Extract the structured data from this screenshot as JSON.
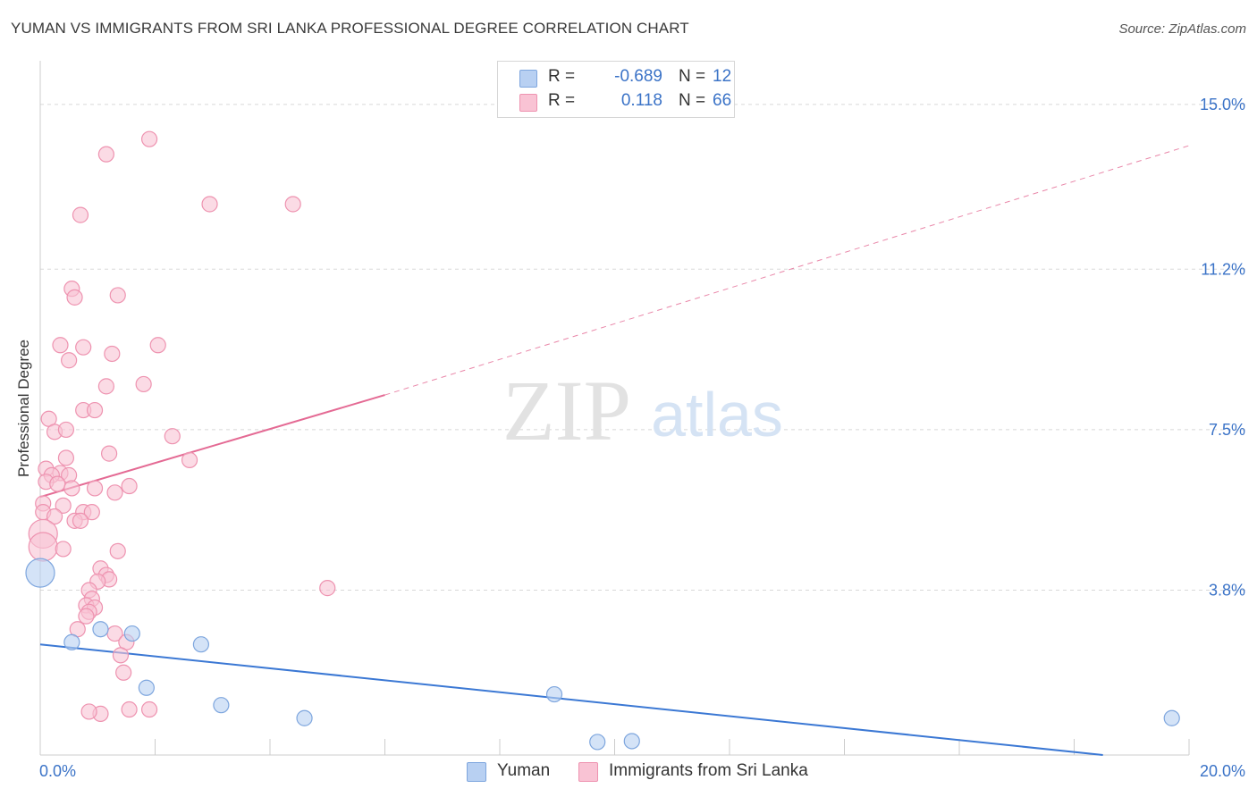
{
  "header": {
    "title": "YUMAN VS IMMIGRANTS FROM SRI LANKA PROFESSIONAL DEGREE CORRELATION CHART",
    "source": "Source: ZipAtlas.com"
  },
  "watermark": {
    "zip": "ZIP",
    "atlas": "atlas"
  },
  "legend": {
    "rows": [
      {
        "r_label": "R =",
        "r_value": "-0.689",
        "n_label": "N =",
        "n_value": "12"
      },
      {
        "r_label": "R =",
        "r_value": "0.118",
        "n_label": "N =",
        "n_value": "66"
      }
    ]
  },
  "bottom_legend": {
    "yuman": "Yuman",
    "srilanka": "Immigrants from Sri Lanka"
  },
  "colors": {
    "yuman_fill": "#b8d0f2",
    "yuman_stroke": "#7ea6de",
    "yuman_line": "#3b78d4",
    "srilanka_fill": "#f9c3d4",
    "srilanka_stroke": "#ee93b0",
    "srilanka_line": "#e46a94",
    "axis_text": "#3b73c7",
    "grid": "#d8d8d8"
  },
  "chart_data": {
    "type": "scatter",
    "title": "YUMAN VS IMMIGRANTS FROM SRI LANKA PROFESSIONAL DEGREE CORRELATION CHART",
    "xlabel": "",
    "ylabel": "Professional Degree",
    "xlim": [
      0,
      20
    ],
    "ylim": [
      0,
      15.8
    ],
    "x_tick_labels": [
      {
        "value": 0,
        "label": "0.0%"
      },
      {
        "value": 20,
        "label": "20.0%"
      }
    ],
    "y_tick_labels": [
      {
        "value": 3.8,
        "label": "3.8%"
      },
      {
        "value": 7.5,
        "label": "7.5%"
      },
      {
        "value": 11.2,
        "label": "11.2%"
      },
      {
        "value": 15.0,
        "label": "15.0%"
      }
    ],
    "series": [
      {
        "name": "Yuman",
        "r": -0.689,
        "n": 12,
        "points": [
          {
            "x": 0.0,
            "y": 4.2,
            "size": "large"
          },
          {
            "x": 0.55,
            "y": 2.6
          },
          {
            "x": 1.05,
            "y": 2.9
          },
          {
            "x": 1.6,
            "y": 2.8
          },
          {
            "x": 1.85,
            "y": 1.55
          },
          {
            "x": 2.8,
            "y": 2.55
          },
          {
            "x": 3.15,
            "y": 1.15
          },
          {
            "x": 4.6,
            "y": 0.85
          },
          {
            "x": 8.95,
            "y": 1.4
          },
          {
            "x": 9.7,
            "y": 0.3
          },
          {
            "x": 10.3,
            "y": 0.32
          },
          {
            "x": 19.7,
            "y": 0.85
          }
        ],
        "trend": {
          "x_start": 0,
          "y_start": 2.55,
          "x_end": 18.5,
          "y_end": 0.0
        }
      },
      {
        "name": "Immigrants from Sri Lanka",
        "r": 0.118,
        "n": 66,
        "points": [
          {
            "x": 1.9,
            "y": 14.2
          },
          {
            "x": 1.15,
            "y": 13.85
          },
          {
            "x": 0.7,
            "y": 12.45
          },
          {
            "x": 2.95,
            "y": 12.7
          },
          {
            "x": 4.4,
            "y": 12.7
          },
          {
            "x": 0.55,
            "y": 10.75
          },
          {
            "x": 0.6,
            "y": 10.55
          },
          {
            "x": 1.35,
            "y": 10.6
          },
          {
            "x": 0.35,
            "y": 9.45
          },
          {
            "x": 0.75,
            "y": 9.4
          },
          {
            "x": 2.05,
            "y": 9.45
          },
          {
            "x": 0.5,
            "y": 9.1
          },
          {
            "x": 1.25,
            "y": 9.25
          },
          {
            "x": 1.15,
            "y": 8.5
          },
          {
            "x": 1.8,
            "y": 8.55
          },
          {
            "x": 0.75,
            "y": 7.95
          },
          {
            "x": 0.95,
            "y": 7.95
          },
          {
            "x": 0.15,
            "y": 7.75
          },
          {
            "x": 0.25,
            "y": 7.45
          },
          {
            "x": 0.45,
            "y": 7.5
          },
          {
            "x": 2.3,
            "y": 7.35
          },
          {
            "x": 1.2,
            "y": 6.95
          },
          {
            "x": 0.45,
            "y": 6.85
          },
          {
            "x": 2.6,
            "y": 6.8
          },
          {
            "x": 0.1,
            "y": 6.6
          },
          {
            "x": 0.35,
            "y": 6.5
          },
          {
            "x": 0.2,
            "y": 6.45
          },
          {
            "x": 0.5,
            "y": 6.45
          },
          {
            "x": 0.1,
            "y": 6.3
          },
          {
            "x": 0.3,
            "y": 6.25
          },
          {
            "x": 0.55,
            "y": 6.15
          },
          {
            "x": 0.95,
            "y": 6.15
          },
          {
            "x": 1.55,
            "y": 6.2
          },
          {
            "x": 1.3,
            "y": 6.05
          },
          {
            "x": 0.05,
            "y": 5.8
          },
          {
            "x": 0.4,
            "y": 5.75
          },
          {
            "x": 0.05,
            "y": 5.6
          },
          {
            "x": 0.75,
            "y": 5.6
          },
          {
            "x": 0.9,
            "y": 5.6
          },
          {
            "x": 0.25,
            "y": 5.5
          },
          {
            "x": 0.6,
            "y": 5.4
          },
          {
            "x": 0.7,
            "y": 5.4
          },
          {
            "x": 0.05,
            "y": 5.1,
            "size": "large"
          },
          {
            "x": 0.05,
            "y": 4.8,
            "size": "large"
          },
          {
            "x": 0.4,
            "y": 4.75
          },
          {
            "x": 1.35,
            "y": 4.7
          },
          {
            "x": 1.05,
            "y": 4.3
          },
          {
            "x": 1.15,
            "y": 4.15
          },
          {
            "x": 1.2,
            "y": 4.05
          },
          {
            "x": 1.0,
            "y": 4.0
          },
          {
            "x": 5.0,
            "y": 3.85
          },
          {
            "x": 0.85,
            "y": 3.8
          },
          {
            "x": 0.9,
            "y": 3.6
          },
          {
            "x": 0.8,
            "y": 3.45
          },
          {
            "x": 0.95,
            "y": 3.4
          },
          {
            "x": 0.85,
            "y": 3.3
          },
          {
            "x": 0.8,
            "y": 3.2
          },
          {
            "x": 0.65,
            "y": 2.9
          },
          {
            "x": 1.3,
            "y": 2.8
          },
          {
            "x": 1.5,
            "y": 2.6
          },
          {
            "x": 1.4,
            "y": 2.3
          },
          {
            "x": 1.45,
            "y": 1.9
          },
          {
            "x": 1.05,
            "y": 0.95
          },
          {
            "x": 1.55,
            "y": 1.05
          },
          {
            "x": 1.9,
            "y": 1.05
          },
          {
            "x": 0.85,
            "y": 1.0
          }
        ],
        "trend": {
          "x_start": 0,
          "y_start": 5.95,
          "x_end": 6.0,
          "y_end": 8.3,
          "dash_x_end": 20.0,
          "dash_y_end": 14.05
        }
      }
    ],
    "grid": true,
    "legend_position": "top-center"
  }
}
